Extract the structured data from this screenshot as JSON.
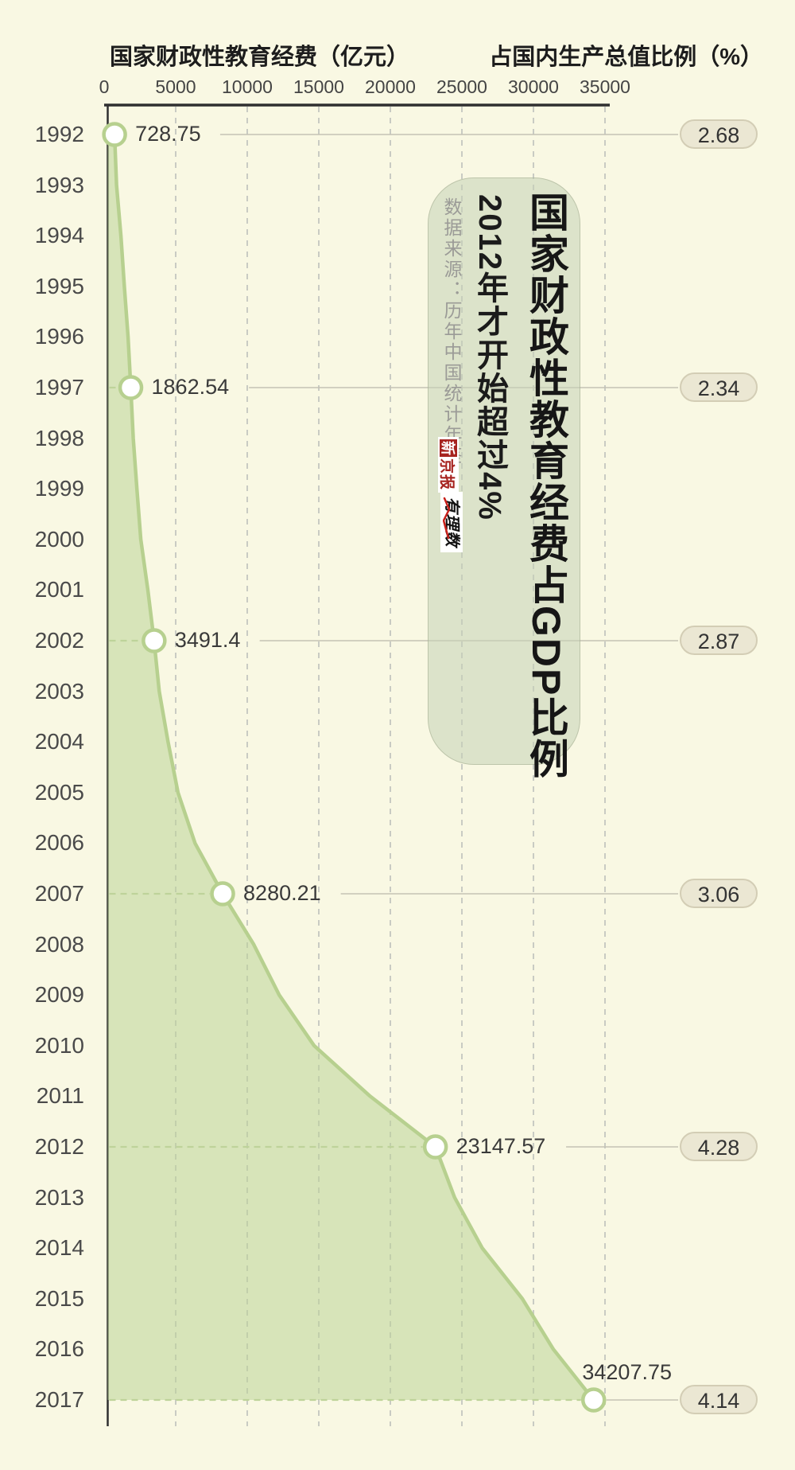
{
  "header": {
    "left_title": "国家财政性教育经费（亿元）",
    "right_title": "占国内生产总值比例（%）"
  },
  "chart_data": {
    "type": "area",
    "orientation": "years-vertical, value-axis horizontal at top",
    "title": "国家财政性教育经费占GDP比例",
    "value_axis": {
      "label": "国家财政性教育经费（亿元）",
      "ticks": [
        0,
        5000,
        10000,
        15000,
        20000,
        25000,
        30000,
        35000
      ],
      "range": [
        0,
        35000
      ],
      "grid": "dashed vertical lines"
    },
    "ratio_axis_label": "占国内生产总值比例（%）",
    "categories": [
      "1992",
      "1993",
      "1994",
      "1995",
      "1996",
      "1997",
      "1998",
      "1999",
      "2000",
      "2001",
      "2002",
      "2003",
      "2004",
      "2005",
      "2006",
      "2007",
      "2008",
      "2009",
      "2010",
      "2011",
      "2012",
      "2013",
      "2014",
      "2015",
      "2016",
      "2017"
    ],
    "values": [
      728.75,
      867.76,
      1174.74,
      1411.52,
      1671.7,
      1862.54,
      2032.45,
      2287.18,
      2562.61,
      3057.01,
      3491.4,
      3850.62,
      4465.86,
      5161.08,
      6348.36,
      8280.21,
      10449.63,
      12231.09,
      14670.07,
      18586.7,
      23147.57,
      24488.22,
      26420.58,
      29221.45,
      31396.25,
      34207.75
    ],
    "labeled_points": [
      {
        "year": "1992",
        "value_label": "728.75",
        "gdp_ratio": "2.68"
      },
      {
        "year": "1997",
        "value_label": "1862.54",
        "gdp_ratio": "2.34"
      },
      {
        "year": "2002",
        "value_label": "3491.4",
        "gdp_ratio": "2.87"
      },
      {
        "year": "2007",
        "value_label": "8280.21",
        "gdp_ratio": "3.06"
      },
      {
        "year": "2012",
        "value_label": "23147.57",
        "gdp_ratio": "4.28"
      },
      {
        "year": "2017",
        "value_label": "34207.75",
        "gdp_ratio": "4.14"
      }
    ]
  },
  "callout": {
    "title": "国家财政性教育经费占GDP比例",
    "subtitle": "2012年才开始超过4%",
    "source": "数据来源：历年中国统计年鉴"
  },
  "logos": {
    "xjb_first": "新",
    "xjb_rest": "京报",
    "yls": "有理数"
  },
  "colors": {
    "background": "#f9f8e3",
    "area_fill": "#dce7c2",
    "area_line": "#b7d08f",
    "card_bg": "#dfe5cd",
    "badge_bg": "#ebe7d3",
    "badge_border": "#d3cdb5",
    "grid": "#c9cbc3",
    "text_dark": "#2f2f2f",
    "text_gray": "#9b9b97",
    "logo_red": "#a6231f"
  }
}
